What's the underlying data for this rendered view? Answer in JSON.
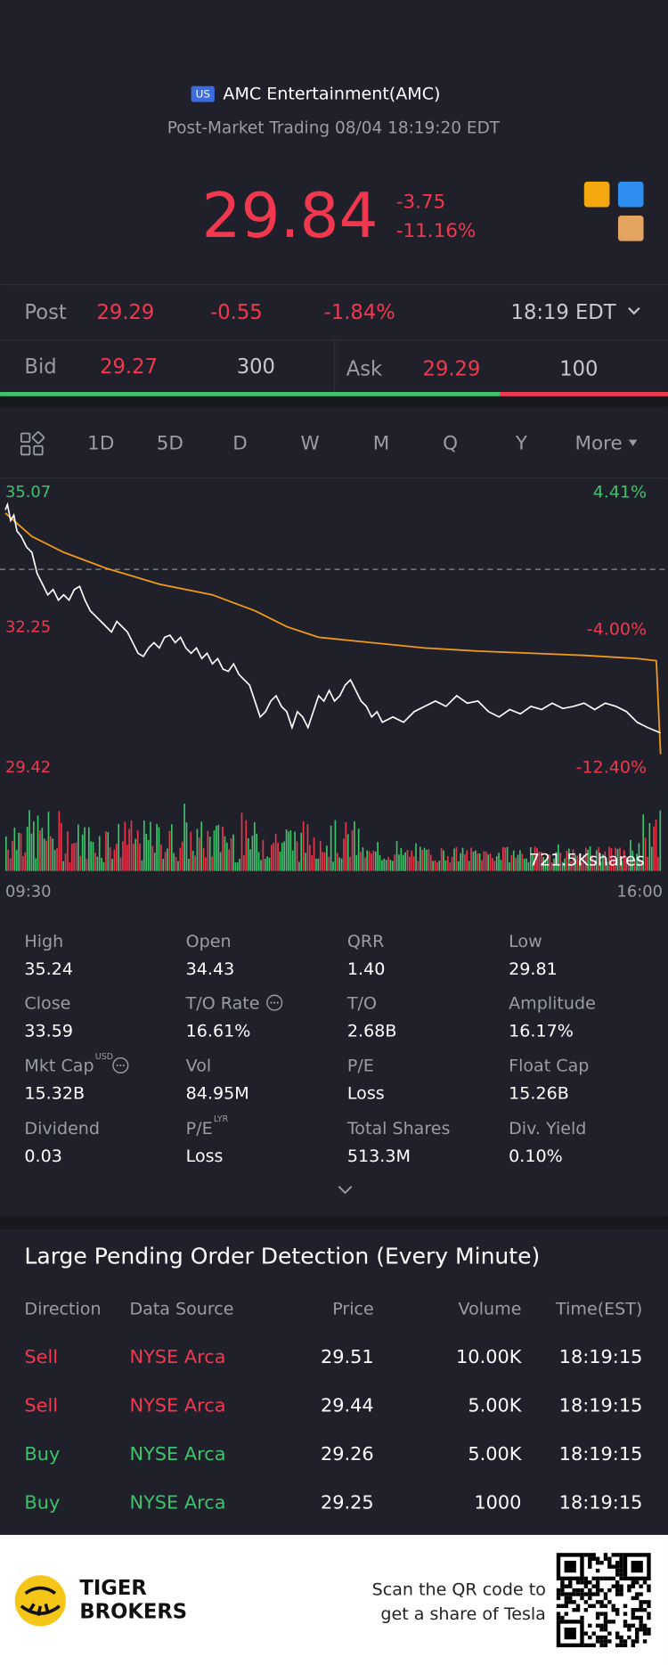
{
  "header": {
    "badge": "US",
    "title": "AMC Entertainment(AMC)",
    "subtitle": "Post-Market Trading 08/04 18:19:20 EDT"
  },
  "quote": {
    "price": "29.84",
    "change": "-3.75",
    "change_pct": "-11.16%"
  },
  "post": {
    "label": "Post",
    "price": "29.29",
    "change": "-0.55",
    "change_pct": "-1.84%",
    "time": "18:19 EDT"
  },
  "bid_ask": {
    "bid_label": "Bid",
    "bid": "29.27",
    "bid_size": "300",
    "ask_label": "Ask",
    "ask": "29.29",
    "ask_size": "100"
  },
  "tabs": {
    "items": [
      "1D",
      "5D",
      "D",
      "W",
      "M",
      "Q",
      "Y",
      "More"
    ],
    "active": 0
  },
  "chart": {
    "left_labels": [
      {
        "text": "35.07",
        "color": "#3ec26b"
      },
      {
        "text": "32.25",
        "color": "#f2384e"
      },
      {
        "text": "29.42",
        "color": "#f2384e"
      }
    ],
    "right_labels": [
      {
        "text": "4.41%",
        "color": "#3ec26b"
      },
      {
        "text": "-4.00%",
        "color": "#f2384e"
      },
      {
        "text": "-12.40%",
        "color": "#f2384e"
      }
    ],
    "volume_label": "721.5Kshares",
    "start": "09:30",
    "end": "16:00"
  },
  "stats": [
    {
      "label": "High",
      "value": "35.24"
    },
    {
      "label": "Open",
      "value": "34.43"
    },
    {
      "label": "QRR",
      "value": "1.40"
    },
    {
      "label": "Low",
      "value": "29.81"
    },
    {
      "label": "Close",
      "value": "33.59"
    },
    {
      "label": "T/O Rate",
      "value": "16.61%",
      "info": true
    },
    {
      "label": "T/O",
      "value": "2.68B"
    },
    {
      "label": "Amplitude",
      "value": "16.17%"
    },
    {
      "label": "Mkt Cap",
      "sup": "USD",
      "value": "15.32B",
      "info": true
    },
    {
      "label": "Vol",
      "value": "84.95M"
    },
    {
      "label": "P/E",
      "value": "Loss"
    },
    {
      "label": "Float Cap",
      "value": "15.26B"
    },
    {
      "label": "Dividend",
      "value": "0.03"
    },
    {
      "label": "P/E",
      "sup": "LYR",
      "value": "Loss"
    },
    {
      "label": "Total Shares",
      "value": "513.3M"
    },
    {
      "label": "Div. Yield",
      "value": "0.10%"
    }
  ],
  "orders": {
    "title": "Large Pending Order Detection (Every Minute)",
    "columns": [
      "Direction",
      "Data Source",
      "Price",
      "Volume",
      "Time(EST)"
    ],
    "rows": [
      {
        "cells": [
          "Sell",
          "NYSE Arca",
          "29.51",
          "10.00K",
          "18:19:15"
        ],
        "color": "#f2384e"
      },
      {
        "cells": [
          "Sell",
          "NYSE Arca",
          "29.44",
          "5.00K",
          "18:19:15"
        ],
        "color": "#f2384e"
      },
      {
        "cells": [
          "Buy",
          "NYSE Arca",
          "29.26",
          "5.00K",
          "18:19:15"
        ],
        "color": "#3ec26b"
      },
      {
        "cells": [
          "Buy",
          "NYSE Arca",
          "29.25",
          "1000",
          "18:19:15"
        ],
        "color": "#3ec26b"
      }
    ]
  },
  "footer": {
    "brand": [
      "TIGER",
      "BROKERS"
    ],
    "cta": [
      "Scan the QR code to",
      "get a share of Tesla"
    ]
  }
}
